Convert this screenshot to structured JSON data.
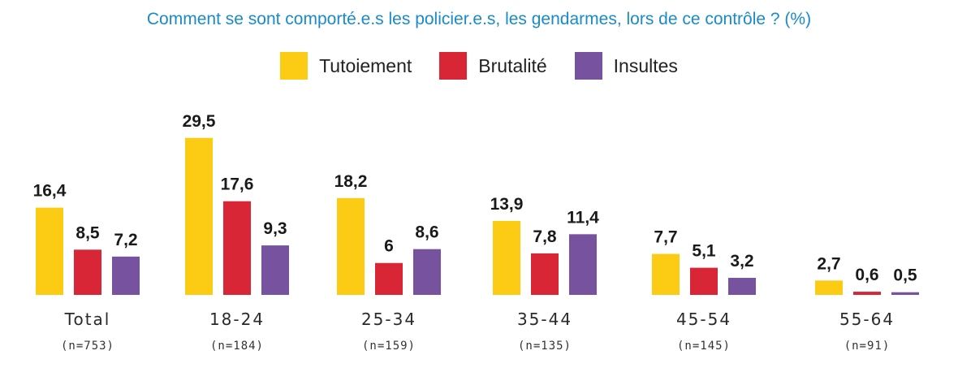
{
  "chart_data": {
    "type": "bar",
    "title": "Comment se sont comporté.e.s les policier.e.s, les gendarmes, lors de ce contrôle ? (%)",
    "xlabel": "",
    "ylabel": "",
    "ylim": [
      0,
      30
    ],
    "grid": false,
    "legend_position": "top-center",
    "categories": [
      "Total",
      "18-24",
      "25-34",
      "35-44",
      "45-54",
      "55-64"
    ],
    "category_sublabels": [
      "(n=753)",
      "(n=184)",
      "(n=159)",
      "(n=135)",
      "(n=145)",
      "(n=91)"
    ],
    "series": [
      {
        "name": "Tutoiement",
        "color": "#fccb14",
        "values": [
          16.4,
          29.5,
          18.2,
          13.9,
          7.7,
          2.7
        ],
        "labels": [
          "16,4",
          "29,5",
          "18,2",
          "13,9",
          "7,7",
          "2,7"
        ]
      },
      {
        "name": "Brutalité",
        "color": "#d92636",
        "values": [
          8.5,
          17.6,
          6,
          7.8,
          5.1,
          0.6
        ],
        "labels": [
          "8,5",
          "17,6",
          "6",
          "7,8",
          "5,1",
          "0,6"
        ]
      },
      {
        "name": "Insultes",
        "color": "#76529f",
        "values": [
          7.2,
          9.3,
          8.6,
          11.4,
          3.2,
          0.5
        ],
        "labels": [
          "7,2",
          "9,3",
          "8,6",
          "11,4",
          "3,2",
          "0,5"
        ]
      }
    ]
  }
}
